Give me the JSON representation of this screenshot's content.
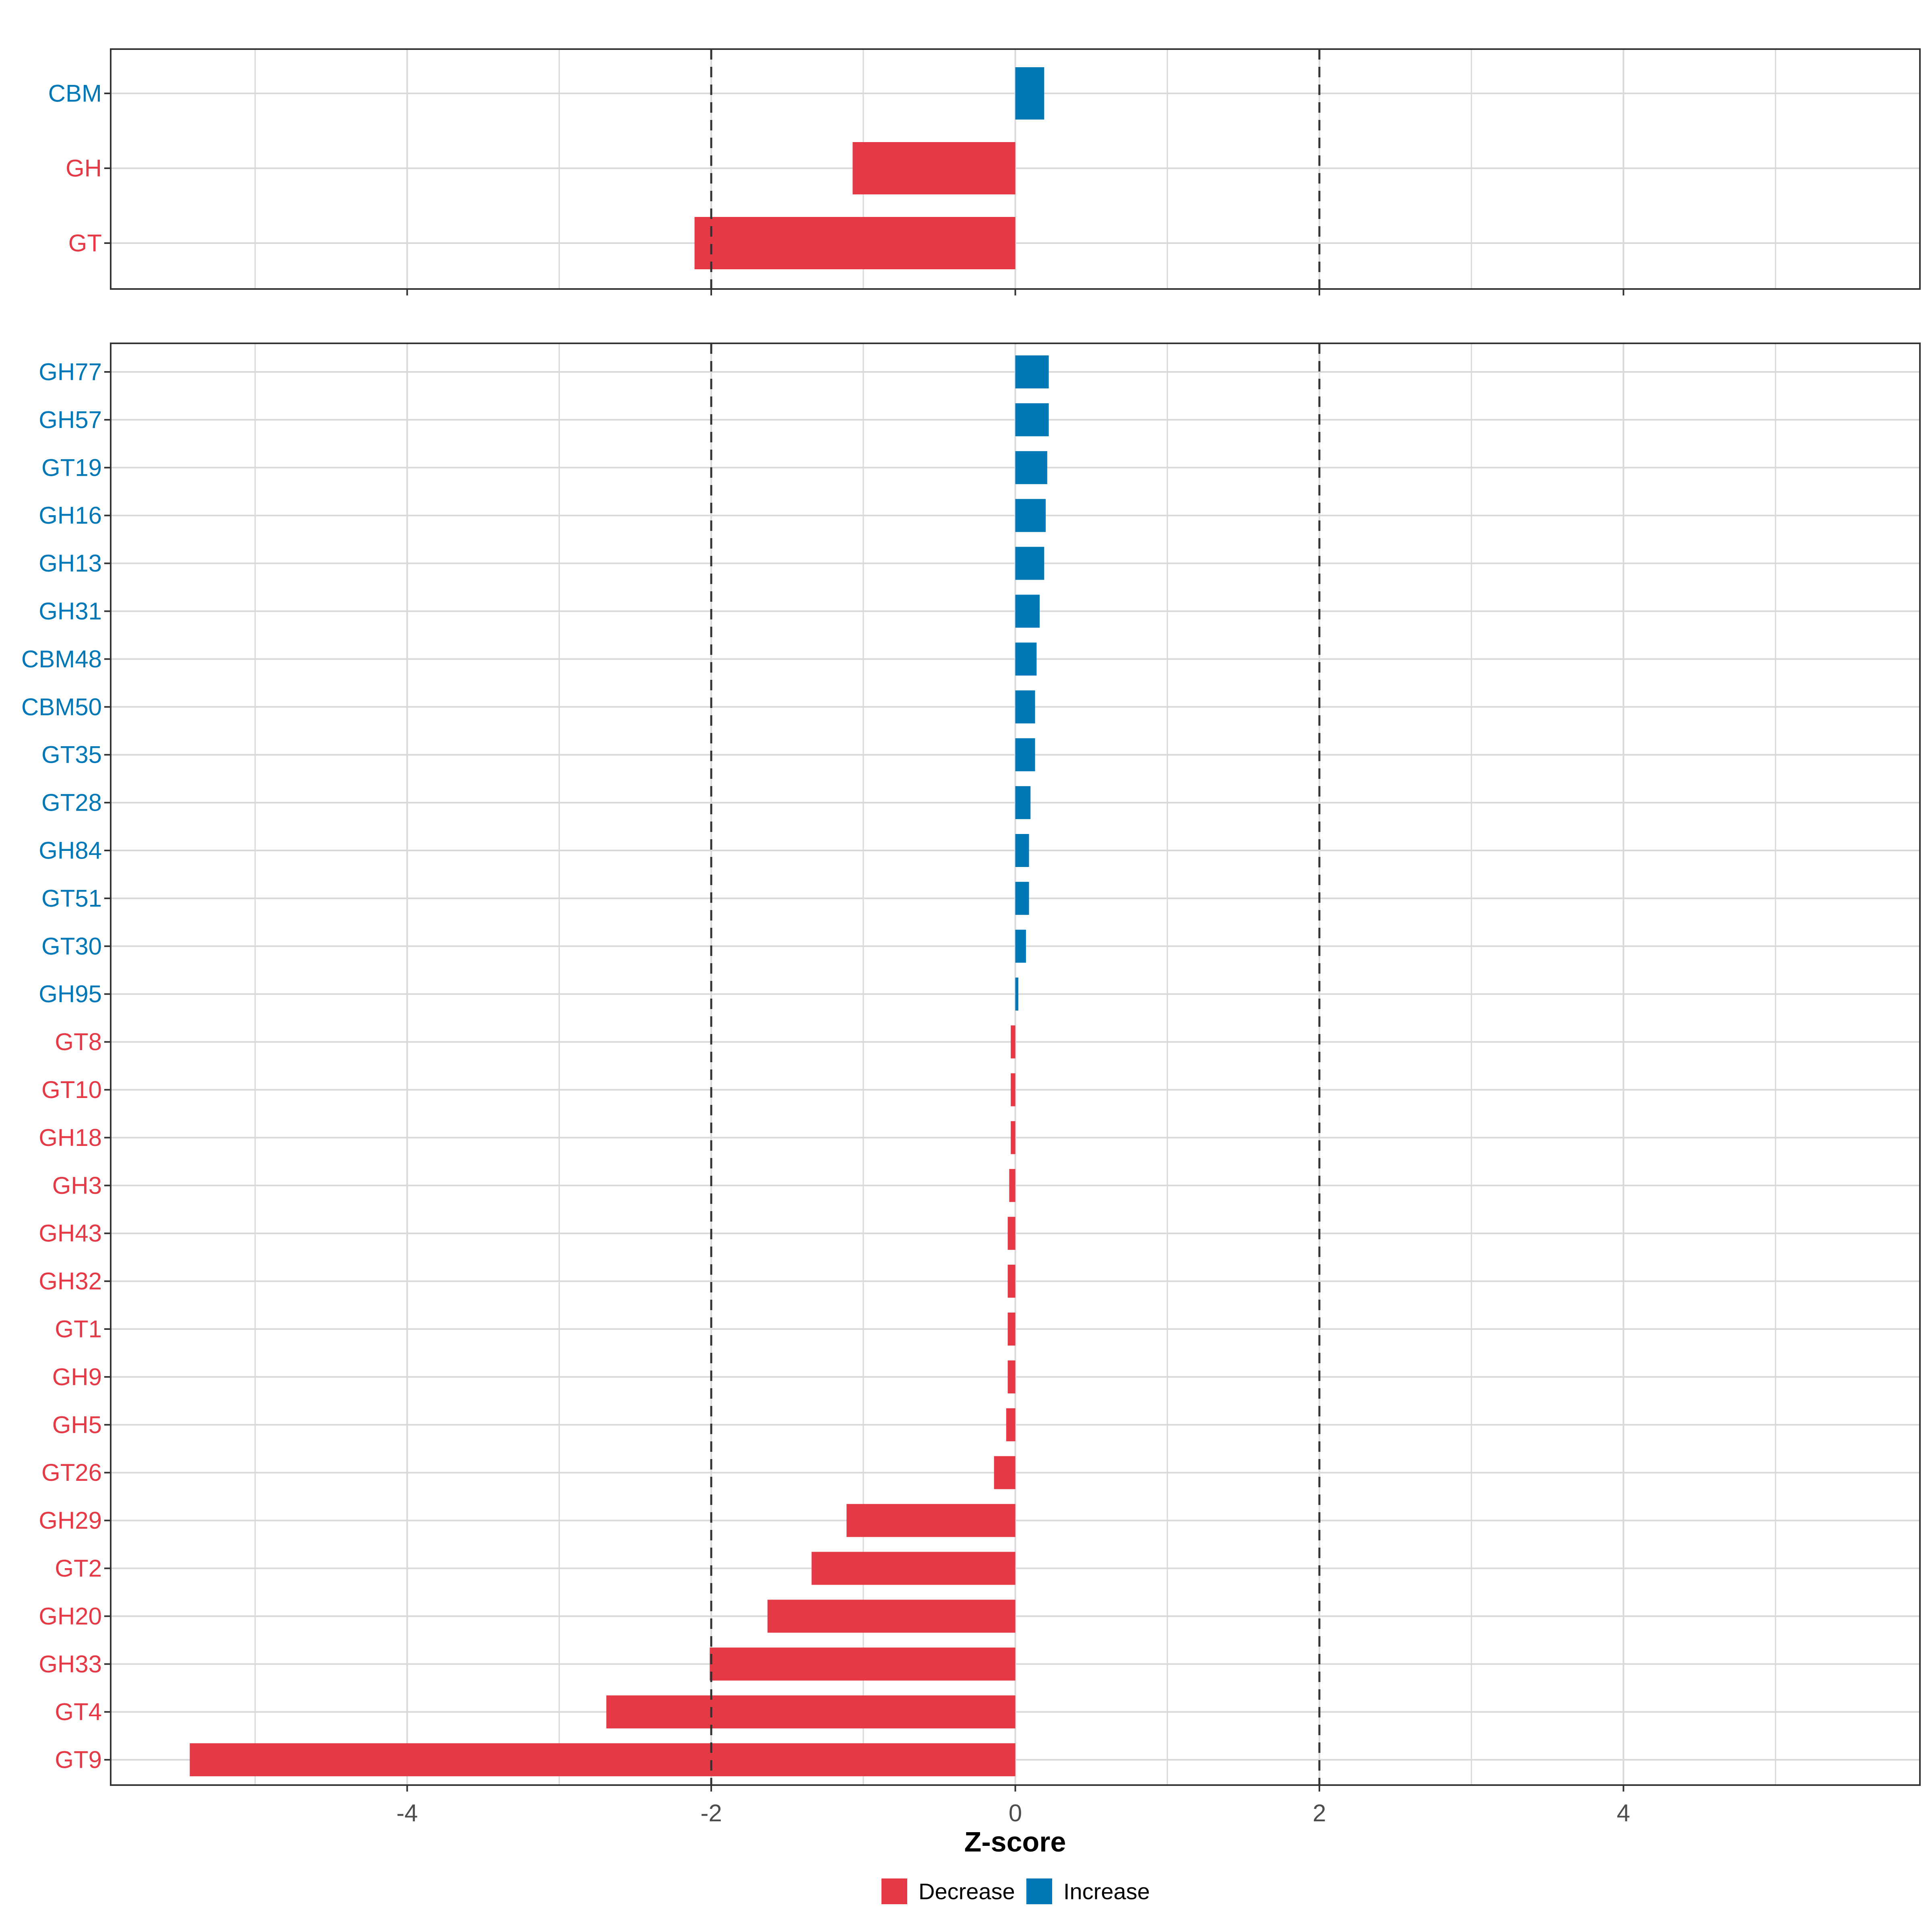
{
  "colors": {
    "decrease": "#e63946",
    "increase": "#0077b6",
    "grid": "#d9d9d9",
    "panel_border": "#333333",
    "threshold_line": "#333333",
    "tick_text": "#4d4d4d"
  },
  "chart_data": [
    {
      "type": "bar",
      "orientation": "horizontal",
      "panel": "top",
      "categories": [
        "CBM",
        "GH",
        "GT"
      ],
      "values": [
        0.19,
        -1.07,
        -2.11
      ],
      "direction": [
        "Increase",
        "Decrease",
        "Decrease"
      ],
      "xlim": [
        -5.95,
        5.95
      ],
      "xticks": [
        -4,
        -2,
        0,
        2,
        4
      ],
      "xtick_labels": [
        "-4",
        "-2",
        "0",
        "2",
        "4"
      ],
      "threshold_lines": [
        -2,
        2
      ],
      "grid": true
    },
    {
      "type": "bar",
      "orientation": "horizontal",
      "panel": "bottom",
      "categories": [
        "GH77",
        "GH57",
        "GT19",
        "GH16",
        "GH13",
        "GH31",
        "CBM48",
        "CBM50",
        "GT35",
        "GT28",
        "GH84",
        "GT51",
        "GT30",
        "GH95",
        "GT8",
        "GT10",
        "GH18",
        "GH3",
        "GH43",
        "GH32",
        "GT1",
        "GH9",
        "GH5",
        "GT26",
        "GH29",
        "GT2",
        "GH20",
        "GH33",
        "GT4",
        "GT9"
      ],
      "values": [
        0.22,
        0.22,
        0.21,
        0.2,
        0.19,
        0.16,
        0.14,
        0.13,
        0.13,
        0.1,
        0.09,
        0.09,
        0.07,
        0.02,
        -0.03,
        -0.03,
        -0.03,
        -0.04,
        -0.05,
        -0.05,
        -0.05,
        -0.05,
        -0.06,
        -0.14,
        -1.11,
        -1.34,
        -1.63,
        -2.01,
        -2.69,
        -5.43
      ],
      "direction": [
        "Increase",
        "Increase",
        "Increase",
        "Increase",
        "Increase",
        "Increase",
        "Increase",
        "Increase",
        "Increase",
        "Increase",
        "Increase",
        "Increase",
        "Increase",
        "Increase",
        "Decrease",
        "Decrease",
        "Decrease",
        "Decrease",
        "Decrease",
        "Decrease",
        "Decrease",
        "Decrease",
        "Decrease",
        "Decrease",
        "Decrease",
        "Decrease",
        "Decrease",
        "Decrease",
        "Decrease",
        "Decrease"
      ],
      "xlim": [
        -5.95,
        5.95
      ],
      "xticks": [
        -4,
        -2,
        0,
        2,
        4
      ],
      "xtick_labels": [
        "-4",
        "-2",
        "0",
        "2",
        "4"
      ],
      "threshold_lines": [
        -2,
        2
      ],
      "grid": true,
      "xlabel": "Z-score"
    }
  ],
  "legend": {
    "placement": "bottom",
    "items": [
      {
        "label": "Decrease",
        "color_key": "decrease"
      },
      {
        "label": "Increase",
        "color_key": "increase"
      }
    ]
  }
}
